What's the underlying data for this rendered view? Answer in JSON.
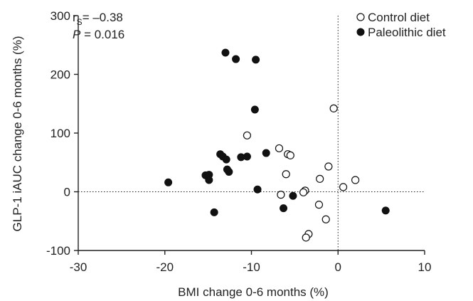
{
  "chart_data": {
    "type": "scatter",
    "xlabel": "BMI change 0-6 months (%)",
    "ylabel": "GLP-1 iAUC change 0-6 months (%)",
    "xlim": [
      -30,
      10
    ],
    "ylim": [
      -100,
      300
    ],
    "xticks": [
      -30,
      -20,
      -10,
      0,
      10
    ],
    "yticks": [
      -100,
      0,
      100,
      200,
      300
    ],
    "xtick_labels": [
      "-30",
      "-20",
      "-10",
      "0",
      "10"
    ],
    "ytick_labels": [
      "-100",
      "0",
      "100",
      "200",
      "300"
    ],
    "reference_lines": {
      "x": 0,
      "y": 0,
      "style": "dotted"
    },
    "grid": false,
    "legend_position": "top-right",
    "annotation": {
      "rs_prefix": "r",
      "rs_subscript": "S",
      "rs_value": "= –0.38",
      "p_label": "P",
      "p_value": " = 0.016"
    },
    "series": [
      {
        "name": "Control diet",
        "marker": "open-circle",
        "points": [
          [
            -0.5,
            142
          ],
          [
            -10.5,
            96
          ],
          [
            -6.8,
            74
          ],
          [
            -5.8,
            64
          ],
          [
            -5.5,
            62
          ],
          [
            -1.1,
            43
          ],
          [
            -6.0,
            30
          ],
          [
            -2.1,
            22
          ],
          [
            2.0,
            20
          ],
          [
            0.6,
            8
          ],
          [
            -3.8,
            2
          ],
          [
            -4.0,
            -1
          ],
          [
            -6.6,
            -5
          ],
          [
            -2.2,
            -22
          ],
          [
            -1.4,
            -47
          ],
          [
            -3.4,
            -72
          ],
          [
            -3.7,
            -78
          ]
        ]
      },
      {
        "name": "Paleolithic diet",
        "marker": "filled-circle",
        "points": [
          [
            -13.0,
            237
          ],
          [
            -11.8,
            226
          ],
          [
            -9.5,
            225
          ],
          [
            -9.6,
            140
          ],
          [
            -8.3,
            66
          ],
          [
            -13.6,
            64
          ],
          [
            -13.3,
            60
          ],
          [
            -11.2,
            59
          ],
          [
            -10.5,
            60
          ],
          [
            -12.9,
            55
          ],
          [
            -12.8,
            38
          ],
          [
            -12.6,
            34
          ],
          [
            -15.3,
            28
          ],
          [
            -14.9,
            29
          ],
          [
            -14.9,
            20
          ],
          [
            -19.6,
            16
          ],
          [
            -9.3,
            4
          ],
          [
            -5.2,
            -7
          ],
          [
            -6.3,
            -28
          ],
          [
            -14.3,
            -35
          ],
          [
            5.5,
            -32
          ]
        ]
      }
    ]
  },
  "colors": {
    "background": "#ffffff",
    "axis": "#222222",
    "text": "#222222",
    "marker": "#111111"
  }
}
